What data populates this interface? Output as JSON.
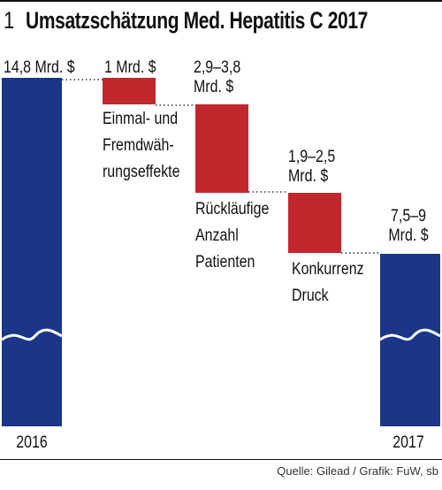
{
  "header": {
    "number": "1",
    "title": "Umsatzschätzung Med. Hepatitis C 2017"
  },
  "colors": {
    "total_bar": "#1b3687",
    "decrease_bar": "#c1272d",
    "connector": "#333333"
  },
  "chart_data": {
    "type": "waterfall",
    "title": "Umsatzschätzung Med. Hepatitis C 2017",
    "unit": "Mrd. $",
    "axis_break": true,
    "steps": [
      {
        "category": "2016",
        "kind": "total",
        "value": 14.8,
        "value_label": [
          "14,8 Mrd. $"
        ],
        "category_label": [
          "2016"
        ]
      },
      {
        "category": "Einmal- und Fremdwährungseffekte",
        "kind": "decrease",
        "value": -1,
        "value_label": [
          "1 Mrd. $"
        ],
        "category_label": [
          "Einmal- und",
          "Fremdwäh-",
          "rungseffekte"
        ]
      },
      {
        "category": "Rückläufige Anzahl Patienten",
        "kind": "decrease",
        "range": [
          -3.8,
          -2.9
        ],
        "value_label": [
          "2,9–3,8",
          "Mrd. $"
        ],
        "category_label": [
          "Rückläufige",
          "Anzahl",
          "Patienten"
        ]
      },
      {
        "category": "Konkurrenz Druck",
        "kind": "decrease",
        "range": [
          -2.5,
          -1.9
        ],
        "value_label": [
          "1,9–2,5",
          "Mrd. $"
        ],
        "category_label": [
          "Konkurrenz",
          "Druck"
        ]
      },
      {
        "category": "2017",
        "kind": "total",
        "range": [
          7.5,
          9
        ],
        "value_label": [
          "7,5–9",
          "Mrd. $"
        ],
        "category_label": [
          "2017"
        ]
      }
    ]
  },
  "footer": {
    "source": "Quelle: Gilead / Grafik: FuW, sb"
  }
}
